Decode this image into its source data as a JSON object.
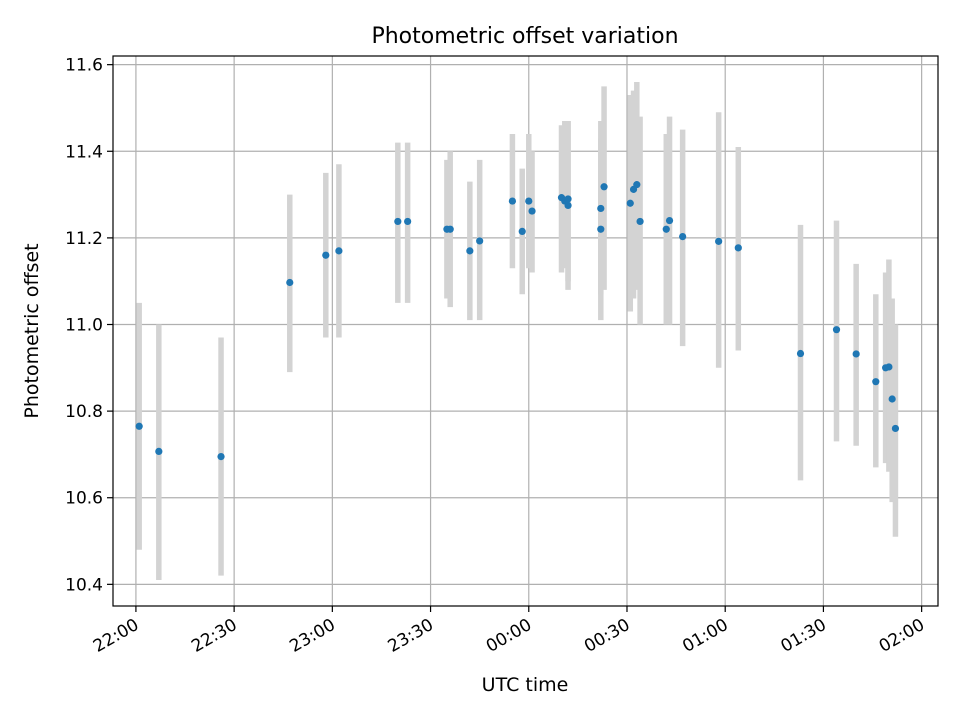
{
  "chart_data": {
    "type": "scatter",
    "title": "Photometric offset variation",
    "xlabel": "UTC time",
    "ylabel": "Photometric offset",
    "x_range": [
      "21:53",
      "02:05"
    ],
    "ylim": [
      10.35,
      11.62
    ],
    "x_ticks": [
      "22:00",
      "22:30",
      "23:00",
      "23:30",
      "00:00",
      "00:30",
      "01:00",
      "01:30",
      "02:00"
    ],
    "y_ticks": [
      10.4,
      10.6,
      10.8,
      11.0,
      11.2,
      11.4,
      11.6
    ],
    "grid": true,
    "marker_color": "#1f77b4",
    "errorbar_color": "#d3d3d3",
    "points": [
      {
        "t": "22:01",
        "y": 10.765,
        "lo": 10.48,
        "hi": 11.05
      },
      {
        "t": "22:07",
        "y": 10.707,
        "lo": 10.41,
        "hi": 11.0
      },
      {
        "t": "22:26",
        "y": 10.695,
        "lo": 10.42,
        "hi": 10.97
      },
      {
        "t": "22:47",
        "y": 11.097,
        "lo": 10.89,
        "hi": 11.3
      },
      {
        "t": "22:58",
        "y": 11.16,
        "lo": 10.97,
        "hi": 11.35
      },
      {
        "t": "23:02",
        "y": 11.17,
        "lo": 10.97,
        "hi": 11.37
      },
      {
        "t": "23:20",
        "y": 11.238,
        "lo": 11.05,
        "hi": 11.42
      },
      {
        "t": "23:23",
        "y": 11.238,
        "lo": 11.05,
        "hi": 11.42
      },
      {
        "t": "23:35",
        "y": 11.22,
        "lo": 11.06,
        "hi": 11.38
      },
      {
        "t": "23:36",
        "y": 11.22,
        "lo": 11.04,
        "hi": 11.4
      },
      {
        "t": "23:42",
        "y": 11.17,
        "lo": 11.01,
        "hi": 11.33
      },
      {
        "t": "23:45",
        "y": 11.193,
        "lo": 11.01,
        "hi": 11.38
      },
      {
        "t": "23:55",
        "y": 11.285,
        "lo": 11.13,
        "hi": 11.44
      },
      {
        "t": "23:58",
        "y": 11.215,
        "lo": 11.07,
        "hi": 11.36
      },
      {
        "t": "00:00",
        "y": 11.285,
        "lo": 11.13,
        "hi": 11.44
      },
      {
        "t": "00:01",
        "y": 11.262,
        "lo": 11.12,
        "hi": 11.4
      },
      {
        "t": "00:10",
        "y": 11.293,
        "lo": 11.12,
        "hi": 11.46
      },
      {
        "t": "00:11",
        "y": 11.285,
        "lo": 11.13,
        "hi": 11.47
      },
      {
        "t": "00:12",
        "y": 11.275,
        "lo": 11.08,
        "hi": 11.47
      },
      {
        "t": "00:12",
        "y": 11.29,
        "lo": 11.1,
        "hi": 11.47
      },
      {
        "t": "00:22",
        "y": 11.22,
        "lo": 11.01,
        "hi": 11.43
      },
      {
        "t": "00:22",
        "y": 11.268,
        "lo": 11.07,
        "hi": 11.47
      },
      {
        "t": "00:23",
        "y": 11.318,
        "lo": 11.08,
        "hi": 11.55
      },
      {
        "t": "00:31",
        "y": 11.28,
        "lo": 11.03,
        "hi": 11.53
      },
      {
        "t": "00:32",
        "y": 11.312,
        "lo": 11.06,
        "hi": 11.54
      },
      {
        "t": "00:33",
        "y": 11.323,
        "lo": 11.08,
        "hi": 11.56
      },
      {
        "t": "00:34",
        "y": 11.238,
        "lo": 11.0,
        "hi": 11.48
      },
      {
        "t": "00:42",
        "y": 11.22,
        "lo": 11.0,
        "hi": 11.44
      },
      {
        "t": "00:43",
        "y": 11.24,
        "lo": 11.0,
        "hi": 11.48
      },
      {
        "t": "00:47",
        "y": 11.203,
        "lo": 10.95,
        "hi": 11.45
      },
      {
        "t": "00:58",
        "y": 11.192,
        "lo": 10.9,
        "hi": 11.49
      },
      {
        "t": "01:04",
        "y": 11.177,
        "lo": 10.94,
        "hi": 11.41
      },
      {
        "t": "01:23",
        "y": 10.933,
        "lo": 10.64,
        "hi": 11.23
      },
      {
        "t": "01:34",
        "y": 10.988,
        "lo": 10.73,
        "hi": 11.24
      },
      {
        "t": "01:40",
        "y": 10.932,
        "lo": 10.72,
        "hi": 11.14
      },
      {
        "t": "01:46",
        "y": 10.868,
        "lo": 10.67,
        "hi": 11.07
      },
      {
        "t": "01:49",
        "y": 10.9,
        "lo": 10.68,
        "hi": 11.12
      },
      {
        "t": "01:50",
        "y": 10.902,
        "lo": 10.66,
        "hi": 11.15
      },
      {
        "t": "01:51",
        "y": 10.828,
        "lo": 10.59,
        "hi": 11.06
      },
      {
        "t": "01:52",
        "y": 10.76,
        "lo": 10.51,
        "hi": 11.0
      }
    ]
  }
}
